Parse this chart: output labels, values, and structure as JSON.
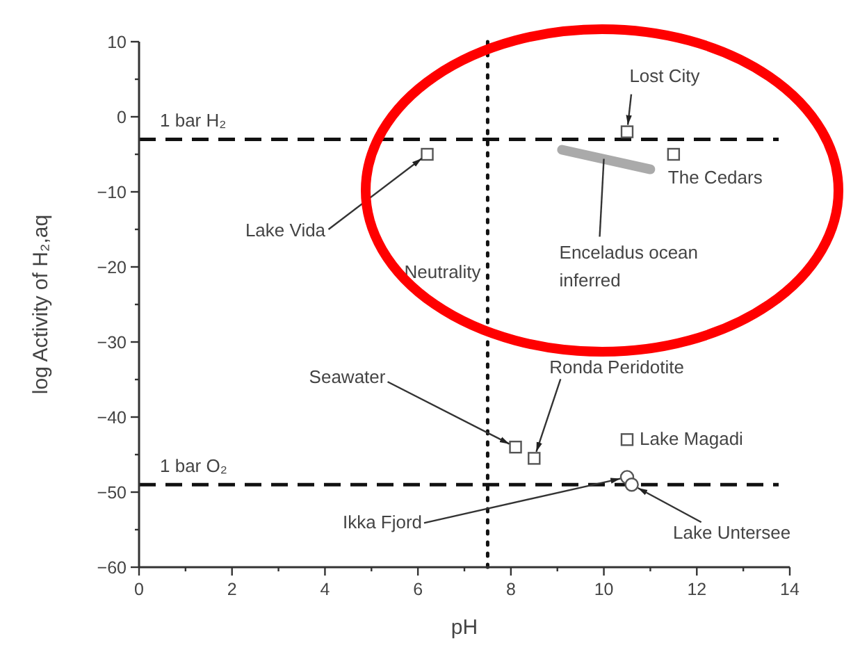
{
  "chart_data": {
    "type": "scatter",
    "xlabel": "pH",
    "ylabel": "log Activity of H₂,aq",
    "xlim": [
      0,
      14
    ],
    "ylim": [
      -60,
      10
    ],
    "xticks": [
      0,
      {
        "value": 1,
        "label": null
      },
      2,
      {
        "value": 3,
        "label": null
      },
      4,
      {
        "value": 5,
        "label": null
      },
      6,
      {
        "value": 7,
        "label": null
      },
      8,
      {
        "value": 9,
        "label": null
      },
      10,
      {
        "value": 11,
        "label": null
      },
      12,
      {
        "value": 13,
        "label": null
      },
      14
    ],
    "yticks": [
      -60,
      {
        "value": -55,
        "label": null
      },
      -50,
      {
        "value": -45,
        "label": null
      },
      -40,
      {
        "value": -35,
        "label": null
      },
      -30,
      {
        "value": -25,
        "label": null
      },
      -20,
      {
        "value": -15,
        "label": null
      },
      -10,
      {
        "value": -5,
        "label": null
      },
      0,
      {
        "value": 5,
        "label": null
      },
      10
    ],
    "grid": false,
    "series": [
      {
        "marker": "square",
        "color": "#555555",
        "x": [
          6.2,
          10.5,
          11.5,
          8.1,
          8.5,
          10.5
        ],
        "values": [
          -5,
          -2,
          -5,
          -44,
          -45.5,
          -43
        ]
      },
      {
        "marker": "circle",
        "color": "#555555",
        "x": [
          10.5,
          10.6
        ],
        "values": [
          -48,
          -49
        ]
      },
      {
        "type": "line",
        "marker": "none",
        "color": "#aaaaaa",
        "x": [
          9.1,
          11.0
        ],
        "values": [
          -4.4,
          -7
        ]
      }
    ],
    "ref_lines": [
      {
        "axis": "y",
        "value": -3,
        "label": "1 bar H₂",
        "line_style": "dashed"
      },
      {
        "axis": "y",
        "value": -49,
        "label": "1 bar O₂",
        "line_style": "dashed"
      },
      {
        "axis": "x",
        "value": 7.5,
        "label": "Neutrality",
        "line_style": "dotted"
      }
    ],
    "annotations": [
      {
        "text": "Lake Vida",
        "x": 6.2,
        "y": -5
      },
      {
        "text": "Lost City",
        "x": 10.5,
        "y": -2
      },
      {
        "text": "The Cedars",
        "x": 11.5,
        "y": -5
      },
      {
        "text": "Seawater",
        "x": 8.1,
        "y": -44
      },
      {
        "text": "Ronda Peridotite",
        "x": 8.5,
        "y": -45.5
      },
      {
        "text": "Lake Magadi",
        "x": 10.5,
        "y": -43
      },
      {
        "text": "Ikka Fjord",
        "x": 10.5,
        "y": -48
      },
      {
        "text": "Lake Untersee",
        "x": 10.6,
        "y": -49
      },
      {
        "text": "Enceladus ocean inferred",
        "x": 10.0,
        "y": -5.6
      }
    ]
  }
}
